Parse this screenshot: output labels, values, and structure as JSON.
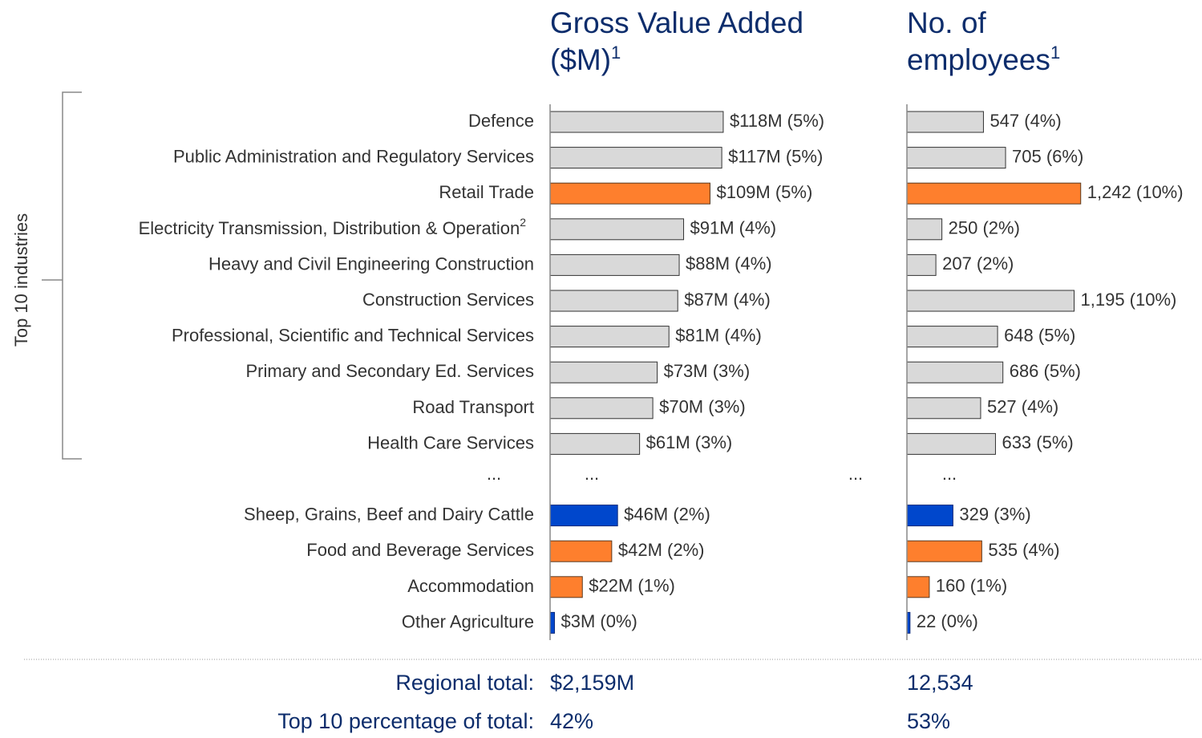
{
  "categories": [
    "Defence",
    "Public Administration and Regulatory Services",
    "Retail Trade",
    "Electricity Transmission, Distribution & Operation",
    "Heavy and Civil Engineering Construction",
    "Construction Services",
    "Professional, Scientific and Technical Services",
    "Primary and Secondary Ed. Services",
    "Road Transport",
    "Health Care Services",
    "Sheep, Grains, Beef and Dairy Cattle",
    "Food and Beverage Services",
    "Accommodation",
    "Other Agriculture"
  ],
  "category_superscripts": [
    null,
    null,
    null,
    "2",
    null,
    null,
    null,
    null,
    null,
    null,
    null,
    null,
    null,
    null
  ],
  "group_label": "Top 10 industries",
  "gap_marks": [
    "...",
    "...",
    "...",
    "..."
  ],
  "chart_data": [
    {
      "type": "bar",
      "title": "Gross Value Added ($M)",
      "title_superscript": "1",
      "values": [
        118,
        117,
        109,
        91,
        88,
        87,
        81,
        73,
        70,
        61,
        46,
        42,
        22,
        3
      ],
      "value_labels": [
        "$118M (5%)",
        "$117M (5%)",
        "$109M (5%)",
        "$91M (4%)",
        "$88M (4%)",
        "$87M (4%)",
        "$81M (4%)",
        "$73M (3%)",
        "$70M (3%)",
        "$61M (3%)",
        "$46M (2%)",
        "$42M (2%)",
        "$22M (1%)",
        "$3M (0%)"
      ],
      "colors": [
        "#d9d9d9",
        "#d9d9d9",
        "#fe7f2d",
        "#d9d9d9",
        "#d9d9d9",
        "#d9d9d9",
        "#d9d9d9",
        "#d9d9d9",
        "#d9d9d9",
        "#d9d9d9",
        "#0047cc",
        "#fe7f2d",
        "#fe7f2d",
        "#0047cc"
      ],
      "xlim": [
        0,
        200
      ]
    },
    {
      "type": "bar",
      "title": "No. of employees",
      "title_superscript": "1",
      "values": [
        547,
        705,
        1242,
        250,
        207,
        1195,
        648,
        686,
        527,
        633,
        329,
        535,
        160,
        22
      ],
      "value_labels": [
        "547 (4%)",
        "705 (6%)",
        "1,242 (10%)",
        "250 (2%)",
        "207 (2%)",
        "1,195 (10%)",
        "648 (5%)",
        "686 (5%)",
        "527 (4%)",
        "633 (5%)",
        "329 (3%)",
        "535 (4%)",
        "160 (1%)",
        "22 (0%)"
      ],
      "colors": [
        "#d9d9d9",
        "#d9d9d9",
        "#fe7f2d",
        "#d9d9d9",
        "#d9d9d9",
        "#d9d9d9",
        "#d9d9d9",
        "#d9d9d9",
        "#d9d9d9",
        "#d9d9d9",
        "#0047cc",
        "#fe7f2d",
        "#fe7f2d",
        "#0047cc"
      ],
      "xlim": [
        0,
        2000
      ]
    }
  ],
  "totals": [
    {
      "label": "Regional total:",
      "values": [
        "$2,159M",
        "12,534"
      ]
    },
    {
      "label": "Top 10 percentage of total:",
      "values": [
        "42%",
        "53%"
      ]
    }
  ]
}
